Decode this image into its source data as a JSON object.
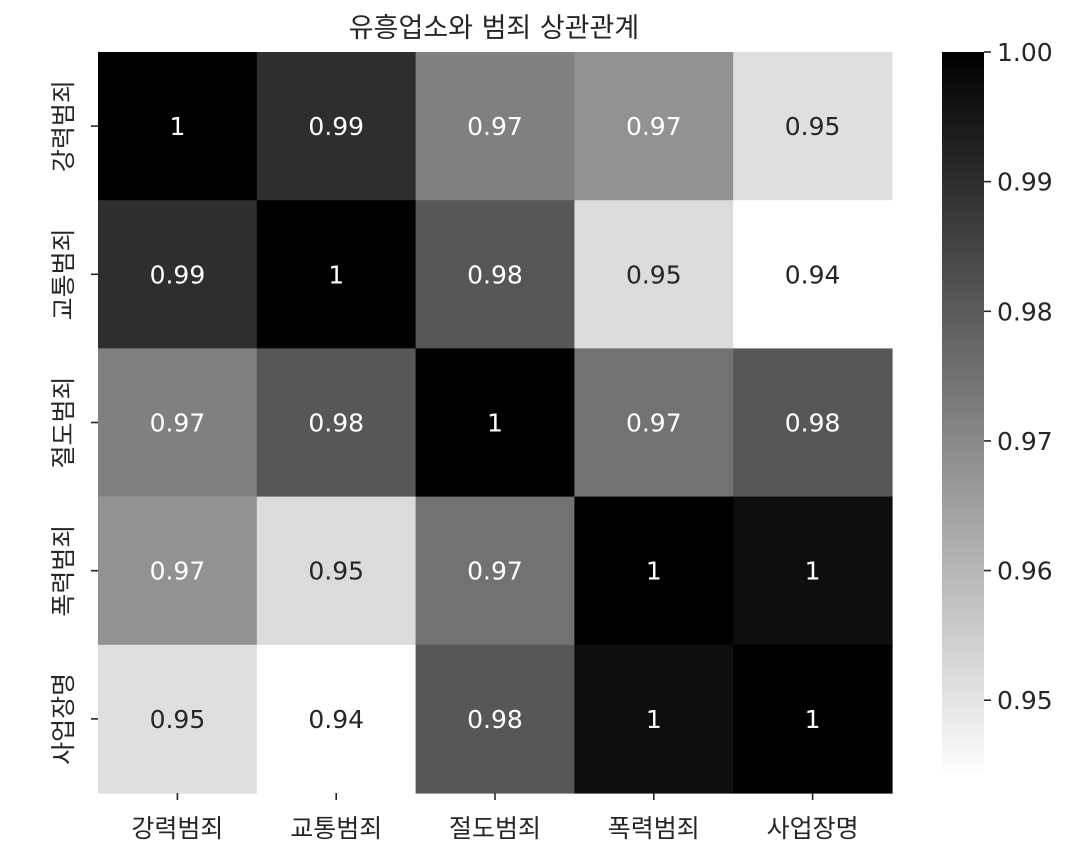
{
  "chart_data": {
    "type": "heatmap",
    "title": "유흥업소와 범죄 상관관계",
    "x_categories": [
      "강력범죄",
      "교통범죄",
      "절도범죄",
      "폭력범죄",
      "사업장명"
    ],
    "y_categories": [
      "강력범죄",
      "교통범죄",
      "절도범죄",
      "폭력범죄",
      "사업장명"
    ],
    "values": [
      [
        1.0,
        0.99,
        0.972,
        0.968,
        0.951
      ],
      [
        0.99,
        1.0,
        0.981,
        0.952,
        0.944
      ],
      [
        0.972,
        0.981,
        1.0,
        0.975,
        0.981
      ],
      [
        0.968,
        0.952,
        0.975,
        1.0,
        0.997
      ],
      [
        0.951,
        0.944,
        0.981,
        0.997,
        1.0
      ]
    ],
    "annotations": [
      [
        "1",
        "0.99",
        "0.97",
        "0.97",
        "0.95"
      ],
      [
        "0.99",
        "1",
        "0.98",
        "0.95",
        "0.94"
      ],
      [
        "0.97",
        "0.98",
        "1",
        "0.97",
        "0.98"
      ],
      [
        "0.97",
        "0.95",
        "0.97",
        "1",
        "1"
      ],
      [
        "0.95",
        "0.94",
        "0.98",
        "1",
        "1"
      ]
    ],
    "colormap": "Greys",
    "vmin": 0.944,
    "vmax": 1.0,
    "colorbar": {
      "ticks": [
        1.0,
        0.99,
        0.98,
        0.97,
        0.96,
        0.95
      ],
      "tick_labels": [
        "1.00",
        "0.99",
        "0.98",
        "0.97",
        "0.96",
        "0.95"
      ],
      "position": "right"
    },
    "grid": false
  }
}
